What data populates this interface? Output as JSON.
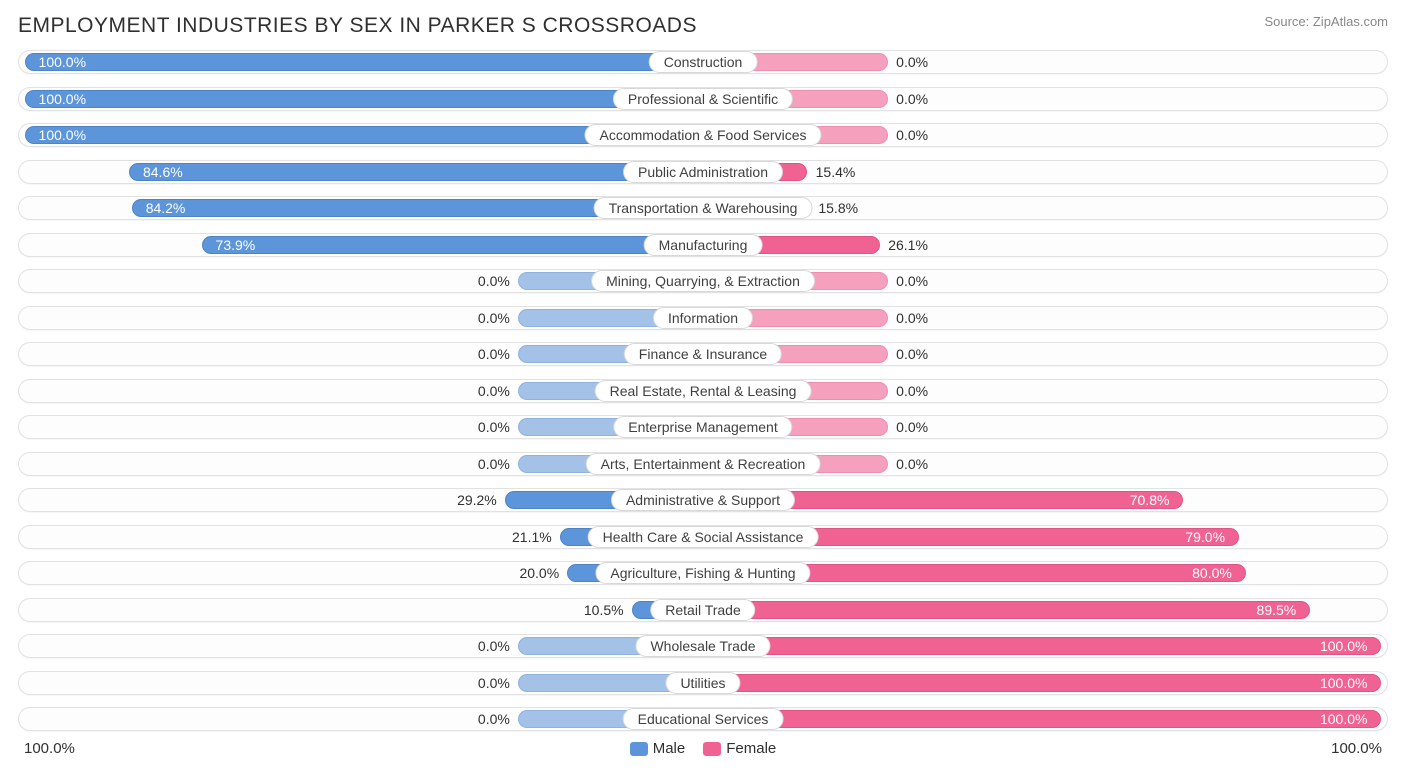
{
  "header": {
    "title": "EMPLOYMENT INDUSTRIES BY SEX IN PARKER S CROSSROADS",
    "source": "Source: ZipAtlas.com"
  },
  "style": {
    "background": "#ffffff",
    "track_bg": "#fdfdfd",
    "track_border": "#e2e2e2",
    "male_color_full": "#5c95da",
    "male_color_zero": "#a4c2e8",
    "female_color_full": "#f06292",
    "female_color_zero": "#f5a0bc",
    "text_color": "#303030",
    "label_bg": "#ffffff",
    "label_border": "#d8d8d8",
    "title_fontsize": 21,
    "label_fontsize": 14,
    "center_offset_pct": 50,
    "zero_bar_extent_pct": 13.5
  },
  "axis": {
    "left_label": "100.0%",
    "right_label": "100.0%"
  },
  "legend": [
    {
      "label": "Male",
      "color": "#5c95da"
    },
    {
      "label": "Female",
      "color": "#f06292"
    }
  ],
  "rows": [
    {
      "category": "Construction",
      "male": 100.0,
      "female": 0.0
    },
    {
      "category": "Professional & Scientific",
      "male": 100.0,
      "female": 0.0
    },
    {
      "category": "Accommodation & Food Services",
      "male": 100.0,
      "female": 0.0
    },
    {
      "category": "Public Administration",
      "male": 84.6,
      "female": 15.4
    },
    {
      "category": "Transportation & Warehousing",
      "male": 84.2,
      "female": 15.8
    },
    {
      "category": "Manufacturing",
      "male": 73.9,
      "female": 26.1
    },
    {
      "category": "Mining, Quarrying, & Extraction",
      "male": 0.0,
      "female": 0.0
    },
    {
      "category": "Information",
      "male": 0.0,
      "female": 0.0
    },
    {
      "category": "Finance & Insurance",
      "male": 0.0,
      "female": 0.0
    },
    {
      "category": "Real Estate, Rental & Leasing",
      "male": 0.0,
      "female": 0.0
    },
    {
      "category": "Enterprise Management",
      "male": 0.0,
      "female": 0.0
    },
    {
      "category": "Arts, Entertainment & Recreation",
      "male": 0.0,
      "female": 0.0
    },
    {
      "category": "Administrative & Support",
      "male": 29.2,
      "female": 70.8
    },
    {
      "category": "Health Care & Social Assistance",
      "male": 21.1,
      "female": 79.0
    },
    {
      "category": "Agriculture, Fishing & Hunting",
      "male": 20.0,
      "female": 80.0
    },
    {
      "category": "Retail Trade",
      "male": 10.5,
      "female": 89.5
    },
    {
      "category": "Wholesale Trade",
      "male": 0.0,
      "female": 100.0
    },
    {
      "category": "Utilities",
      "male": 0.0,
      "female": 100.0
    },
    {
      "category": "Educational Services",
      "male": 0.0,
      "female": 100.0
    }
  ]
}
